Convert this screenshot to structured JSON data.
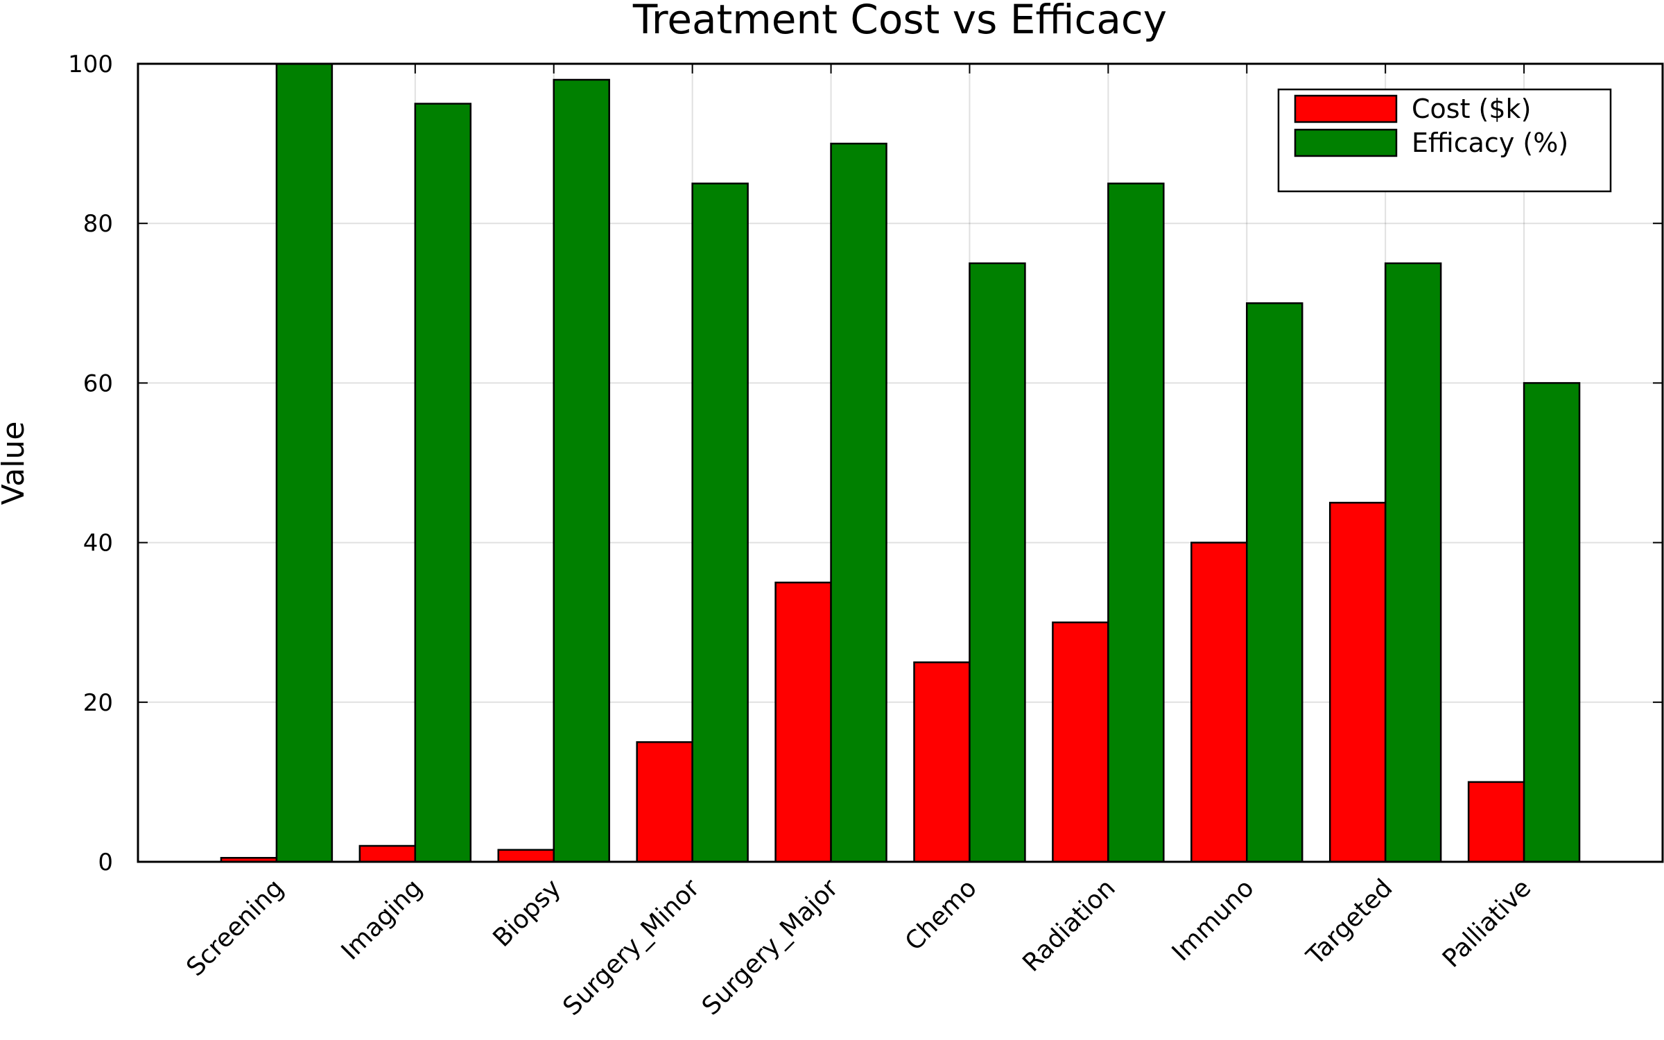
{
  "chart_data": {
    "type": "bar",
    "title": "Treatment Cost vs Efficacy",
    "xlabel": "",
    "ylabel": "Value",
    "ylim": [
      0,
      100
    ],
    "yticks": [
      0,
      20,
      40,
      60,
      80,
      100
    ],
    "grid": true,
    "legend_position": "top-right",
    "categories": [
      "Screening",
      "Imaging",
      "Biopsy",
      "Surgery_Minor",
      "Surgery_Major",
      "Chemo",
      "Radiation",
      "Immuno",
      "Targeted",
      "Palliative"
    ],
    "series": [
      {
        "name": "Cost ($k)",
        "color": "#ff0000",
        "values": [
          0.5,
          2,
          1.5,
          15,
          35,
          25,
          30,
          40,
          45,
          10
        ]
      },
      {
        "name": "Efficacy (%)",
        "color": "#008000",
        "values": [
          100,
          95,
          98,
          85,
          90,
          75,
          85,
          70,
          75,
          60
        ]
      }
    ]
  }
}
